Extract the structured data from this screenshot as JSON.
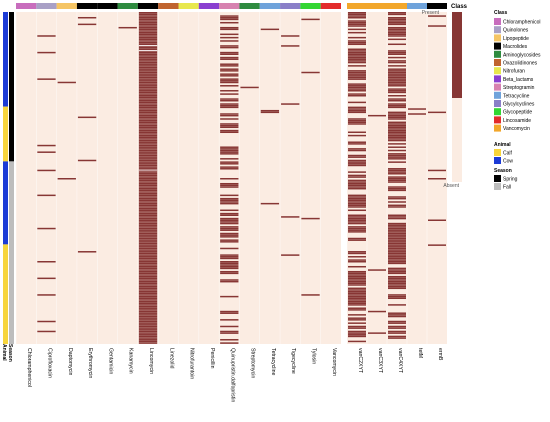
{
  "chart_data": {
    "type": "heatmap",
    "columns": [
      {
        "name": "Chloramphenicol",
        "class": "Chloramphenicol",
        "rows": []
      },
      {
        "name": "Ciprofloxacin",
        "class": "Quinolones",
        "rows": [
          14,
          24,
          40,
          80,
          84,
          95,
          110,
          130,
          150,
          160,
          170,
          186,
          192
        ]
      },
      {
        "name": "Daptomycin",
        "class": "Lipopeptide",
        "rows": [
          42,
          100
        ]
      },
      {
        "name": "Erythromycin",
        "class": "Macrolides",
        "rows": [
          3,
          7,
          63,
          89,
          144
        ]
      },
      {
        "name": "Gentamicin",
        "class": "Macrolides",
        "rows": []
      },
      {
        "name": "Kanamycin",
        "class": "Aminoglycosides",
        "rows": [
          9
        ]
      },
      {
        "name": "Lincomycin",
        "class": "Macrolides",
        "rows_range": [
          [
            0,
            199
          ]
        ]
      },
      {
        "name": "Linezolid",
        "class": "Oxazolidinones",
        "rows": []
      },
      {
        "name": "Nitrofurantoin",
        "class": "Nitrofuran",
        "rows": []
      },
      {
        "name": "Penicillin",
        "class": "Beta_lactams",
        "rows": []
      },
      {
        "name": "Quinupristin.dalfopristin",
        "class": "Streptogramin",
        "rows_density": 0.45
      },
      {
        "name": "Streptomycin",
        "class": "Aminoglycosides",
        "rows": [
          45
        ]
      },
      {
        "name": "Tetracycline",
        "class": "Tetracycline",
        "rows": [
          10,
          59,
          60,
          115
        ]
      },
      {
        "name": "Tigecycline",
        "class": "Glycylcyclines",
        "rows": [
          14,
          20,
          55,
          123,
          146
        ]
      },
      {
        "name": "Tylosin",
        "class": "Glycopeptide",
        "rows": [
          4,
          36,
          124,
          170
        ]
      },
      {
        "name": "Vancomycin",
        "class": "Lincosamide",
        "rows": []
      },
      {
        "name": "vanC2XYT",
        "class": "Vancomycin",
        "rows_density": 0.55
      },
      {
        "name": "vanC3XYT",
        "class": "Vancomycin",
        "rows": [
          62,
          155,
          180,
          193
        ]
      },
      {
        "name": "vanC4XYT",
        "class": "Vancomycin",
        "rows_density": 0.7
      },
      {
        "name": "tetM",
        "class": "Tetracycline",
        "rows": [
          58,
          61
        ]
      },
      {
        "name": "ermB",
        "class": "Macrolides",
        "rows": [
          2,
          8,
          60,
          95,
          100,
          125,
          140
        ]
      }
    ],
    "row_count": 200,
    "animal_annotation": [
      {
        "label": "Cow",
        "from": 0,
        "to": 57
      },
      {
        "label": "Calf",
        "from": 57,
        "to": 90
      },
      {
        "label": "Cow",
        "from": 90,
        "to": 140
      },
      {
        "label": "Calf",
        "from": 140,
        "to": 200
      }
    ],
    "season_annotation": [
      {
        "label": "Spring",
        "from": 0,
        "to": 90
      },
      {
        "label": "Fall",
        "from": 90,
        "to": 200
      }
    ],
    "class_colors": {
      "Chloramphenicol": "#c86dbd",
      "Quinolones": "#a9a0c6",
      "Lipopeptide": "#f5c565",
      "Macrolides": "#000000",
      "Aminoglycosides": "#2e8b3f",
      "Oxazolidinones": "#c0642f",
      "Nitrofuran": "#e8e84e",
      "Beta_lactams": "#8a3fd0",
      "Streptogramin": "#d782b0",
      "Tetracycline": "#6fa3db",
      "Glycylcyclines": "#8a7fc8",
      "Glycopeptide": "#33d633",
      "Lincosamide": "#e32b2b",
      "Vancomycin": "#f2a72b"
    },
    "animal_colors": {
      "Calf": "#f7d53c",
      "Cow": "#1c3bd6"
    },
    "season_colors": {
      "Spring": "#000000",
      "Fall": "#bdbdbd"
    },
    "present_color": "#873634",
    "absent_color": "#fbece2",
    "row_labels": {
      "animal": "Animal",
      "season": "Season"
    },
    "legend": {
      "class_title": "Class",
      "class_items": [
        "Chloramphenicol",
        "Quinolones",
        "Lipopeptide",
        "Macrolides",
        "Aminoglycosides",
        "Oxazolidinones",
        "Nitrofuran",
        "Beta_lactams",
        "Streptogramin",
        "Tetracycline",
        "Glycylcyclines",
        "Glycopeptide",
        "Lincosamide",
        "Vancomycin"
      ],
      "animal_title": "Animal",
      "animal_items": [
        "Calf",
        "Cow"
      ],
      "season_title": "Season",
      "season_items": [
        "Spring",
        "Fall"
      ],
      "value_title": "Class",
      "present_label": "Present",
      "absent_label": "Absent"
    }
  }
}
